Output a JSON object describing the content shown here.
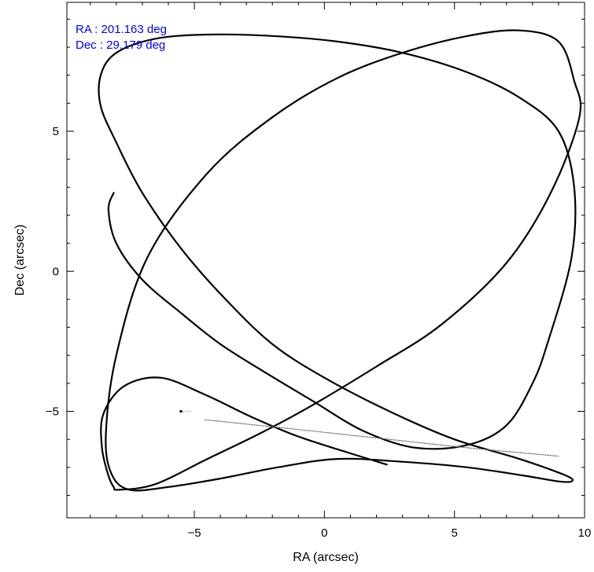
{
  "chart_data": {
    "type": "line",
    "title": "",
    "xlabel": "RA (arcsec)",
    "ylabel": "Dec (arcsec)",
    "xlim": [
      -9.9,
      10.0
    ],
    "ylim": [
      -8.8,
      9.6
    ],
    "grid": false,
    "x_ticks": [
      -5,
      0,
      5,
      10
    ],
    "x_tick_labels": [
      "−5",
      "0",
      "5",
      "10"
    ],
    "y_ticks": [
      -5,
      0,
      5
    ],
    "y_tick_labels": [
      "−5",
      "0",
      "5"
    ],
    "annotations": [
      {
        "text": "RA : 201.163 deg",
        "color": "#0000ee"
      },
      {
        "text": "Dec : 29.179 deg",
        "color": "#0000ee"
      }
    ],
    "series": [
      {
        "style": "solid",
        "color": "#000000",
        "x": [
          2.4,
          1.0,
          -1.0,
          -2.8,
          -4.6,
          -6.3,
          -7.7,
          -8.5,
          -8.55,
          -8.3,
          -8.1,
          -7.9,
          -6.5,
          -4.5,
          -2.5,
          -0.5,
          2.0,
          4.5,
          7.0,
          8.7,
          9.8,
          9.6,
          9.0,
          7.5,
          5.5,
          3.0,
          0.5,
          -2.0,
          -4.5,
          -6.8,
          -8.0,
          -8.4,
          -8.2,
          -7.5,
          -6.0,
          -4.0,
          -1.8,
          0.5,
          3.0,
          5.5,
          7.7,
          9.0,
          9.5,
          9.3,
          7.5,
          5.0,
          2.5,
          0.0,
          -2.0,
          -3.8,
          -5.5,
          -7.0,
          -8.0,
          -8.6,
          -8.6,
          -8.0,
          -6.5,
          -4.5,
          -2.0,
          0.5,
          3.0,
          5.5,
          7.5,
          9.0,
          9.6,
          9.5,
          8.6,
          8.0,
          7.0,
          5.5,
          3.5,
          1.5,
          -0.5,
          -2.3,
          -4.0,
          -5.5,
          -7.0,
          -8.0,
          -8.3,
          -8.1
        ],
        "y": [
          -6.9,
          -6.5,
          -5.9,
          -5.2,
          -4.4,
          -3.8,
          -4.1,
          -5.1,
          -6.3,
          -7.3,
          -7.7,
          -7.8,
          -7.6,
          -6.7,
          -5.8,
          -4.8,
          -3.4,
          -1.9,
          0.3,
          2.8,
          5.5,
          6.8,
          8.2,
          8.6,
          8.4,
          7.8,
          6.9,
          5.5,
          3.5,
          0.5,
          -3.0,
          -5.8,
          -7.2,
          -7.8,
          -7.7,
          -7.4,
          -7.0,
          -6.7,
          -6.8,
          -7.0,
          -7.3,
          -7.5,
          -7.5,
          -7.3,
          -6.7,
          -6.0,
          -5.0,
          -3.8,
          -2.6,
          -1.0,
          0.8,
          2.8,
          4.6,
          5.9,
          7.0,
          7.8,
          8.3,
          8.45,
          8.4,
          8.2,
          7.8,
          7.1,
          6.2,
          5.0,
          3.0,
          0.5,
          -2.5,
          -4.0,
          -5.5,
          -6.2,
          -6.3,
          -5.7,
          -4.6,
          -3.6,
          -2.6,
          -1.5,
          -0.3,
          1.0,
          2.2,
          2.8
        ],
        "width": 2.2
      },
      {
        "style": "dashed",
        "color": "#777777",
        "x": [
          -4.6,
          -1.5,
          2.0,
          5.5,
          9.0
        ],
        "y": [
          -5.3,
          -5.6,
          -5.95,
          -6.3,
          -6.6
        ],
        "width": 1.2
      }
    ],
    "markers": [
      {
        "x": -5.5,
        "y": -5.0
      }
    ]
  }
}
